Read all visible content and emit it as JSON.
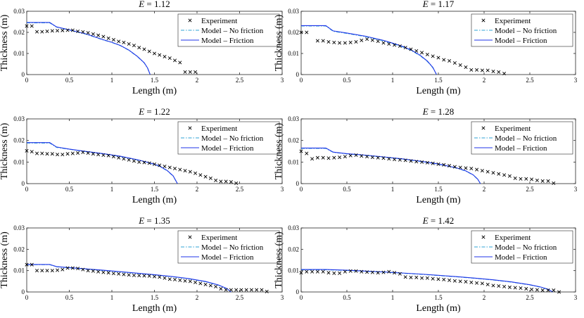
{
  "shared": {
    "xlabel": "Length (m)",
    "ylabel": "Thickness (m)",
    "xlim": [
      0,
      3
    ],
    "ylim": [
      0,
      0.03
    ],
    "xticks": [
      "0",
      "0.5",
      "1",
      "1.5",
      "2",
      "2.5",
      "3"
    ],
    "yticks": [
      "0",
      "0.01",
      "0.02",
      "0.03"
    ],
    "legend": [
      "Experiment",
      "Model – No friction",
      "Model – Friction"
    ],
    "legend_placement": "top-right",
    "grid": false,
    "colors": {
      "experiment": "#000000",
      "no_friction": "#2fa3d6",
      "friction": "#1f35e8"
    }
  },
  "chart_data": [
    {
      "type": "line",
      "title": "E = 1.12",
      "title_var": "E",
      "title_value": "1.12",
      "series": [
        {
          "name": "Experiment",
          "x": [
            0.0,
            0.06,
            0.12,
            0.18,
            0.24,
            0.3,
            0.36,
            0.42,
            0.48,
            0.54,
            0.6,
            0.66,
            0.72,
            0.78,
            0.84,
            0.9,
            0.96,
            1.02,
            1.08,
            1.14,
            1.2,
            1.26,
            1.32,
            1.38,
            1.44,
            1.5,
            1.56,
            1.62,
            1.68,
            1.74,
            1.8,
            1.86,
            1.92,
            1.98
          ],
          "y": [
            0.023,
            0.023,
            0.0203,
            0.0203,
            0.0205,
            0.0207,
            0.0208,
            0.0209,
            0.021,
            0.021,
            0.0205,
            0.0202,
            0.0198,
            0.0192,
            0.0186,
            0.018,
            0.0172,
            0.0165,
            0.0157,
            0.0152,
            0.0145,
            0.0138,
            0.0128,
            0.012,
            0.011,
            0.01,
            0.0093,
            0.0085,
            0.0078,
            0.0067,
            0.0057,
            0.0012,
            0.0012,
            0.0012
          ]
        },
        {
          "name": "Model – No friction",
          "x": [
            0.0,
            0.27,
            0.35,
            0.5,
            0.7,
            0.9,
            1.0,
            1.1,
            1.2,
            1.3,
            1.38,
            1.42,
            1.45
          ],
          "y": [
            0.0245,
            0.0245,
            0.0225,
            0.0211,
            0.0191,
            0.0164,
            0.0152,
            0.0137,
            0.0115,
            0.0085,
            0.0055,
            0.003,
            0.0
          ]
        },
        {
          "name": "Model – Friction",
          "x": [
            0.0,
            0.27,
            0.35,
            0.5,
            0.7,
            0.9,
            1.0,
            1.1,
            1.2,
            1.3,
            1.38,
            1.42,
            1.45
          ],
          "y": [
            0.0247,
            0.0247,
            0.0226,
            0.0212,
            0.0192,
            0.0165,
            0.0153,
            0.0138,
            0.0116,
            0.0086,
            0.0056,
            0.0031,
            0.0
          ]
        }
      ]
    },
    {
      "type": "line",
      "title": "E = 1.17",
      "title_var": "E",
      "title_value": "1.17",
      "series": [
        {
          "name": "Experiment",
          "x": [
            0.0,
            0.06,
            0.18,
            0.24,
            0.3,
            0.36,
            0.42,
            0.48,
            0.54,
            0.6,
            0.66,
            0.72,
            0.78,
            0.84,
            0.9,
            0.96,
            1.02,
            1.08,
            1.14,
            1.2,
            1.26,
            1.32,
            1.38,
            1.44,
            1.5,
            1.56,
            1.62,
            1.68,
            1.74,
            1.8,
            1.86,
            1.92,
            1.98,
            2.04,
            2.1,
            2.16,
            2.22
          ],
          "y": [
            0.02,
            0.02,
            0.016,
            0.016,
            0.0155,
            0.0152,
            0.015,
            0.015,
            0.0152,
            0.0155,
            0.0162,
            0.0168,
            0.0163,
            0.0158,
            0.015,
            0.0145,
            0.014,
            0.0135,
            0.0128,
            0.012,
            0.0112,
            0.0104,
            0.0095,
            0.0087,
            0.008,
            0.007,
            0.0065,
            0.0055,
            0.0045,
            0.0035,
            0.0022,
            0.0022,
            0.002,
            0.002,
            0.0015,
            0.0012,
            0.0005
          ]
        },
        {
          "name": "Model – No friction",
          "x": [
            0.0,
            0.27,
            0.35,
            0.5,
            0.7,
            0.9,
            1.0,
            1.1,
            1.2,
            1.3,
            1.38,
            1.44,
            1.48
          ],
          "y": [
            0.023,
            0.023,
            0.0205,
            0.0195,
            0.018,
            0.016,
            0.0147,
            0.0133,
            0.0115,
            0.009,
            0.0062,
            0.0032,
            0.0
          ]
        },
        {
          "name": "Model – Friction",
          "x": [
            0.0,
            0.27,
            0.35,
            0.5,
            0.7,
            0.9,
            1.0,
            1.1,
            1.2,
            1.3,
            1.38,
            1.44,
            1.48
          ],
          "y": [
            0.0232,
            0.0232,
            0.0207,
            0.0197,
            0.0182,
            0.0162,
            0.0149,
            0.0135,
            0.0117,
            0.0092,
            0.0064,
            0.0034,
            0.0
          ]
        }
      ]
    },
    {
      "type": "line",
      "title": "E = 1.22",
      "title_var": "E",
      "title_value": "1.22",
      "series": [
        {
          "name": "Experiment",
          "x": [
            0.0,
            0.06,
            0.12,
            0.18,
            0.24,
            0.3,
            0.36,
            0.42,
            0.48,
            0.54,
            0.6,
            0.66,
            0.72,
            0.78,
            0.84,
            0.9,
            0.96,
            1.02,
            1.08,
            1.14,
            1.2,
            1.26,
            1.32,
            1.38,
            1.44,
            1.5,
            1.56,
            1.62,
            1.68,
            1.74,
            1.8,
            1.86,
            1.92,
            1.98,
            2.04,
            2.1,
            2.16,
            2.22,
            2.28,
            2.34,
            2.4,
            2.46
          ],
          "y": [
            0.0152,
            0.0148,
            0.014,
            0.014,
            0.0138,
            0.0138,
            0.0135,
            0.0135,
            0.0138,
            0.014,
            0.0142,
            0.0145,
            0.0142,
            0.0138,
            0.0135,
            0.0132,
            0.013,
            0.0125,
            0.012,
            0.0115,
            0.011,
            0.0105,
            0.01,
            0.0098,
            0.0095,
            0.009,
            0.0085,
            0.008,
            0.0075,
            0.007,
            0.0065,
            0.006,
            0.0055,
            0.0048,
            0.004,
            0.0032,
            0.0025,
            0.0015,
            0.001,
            0.001,
            0.0008,
            0.0002
          ]
        },
        {
          "name": "Model – No friction",
          "x": [
            0.0,
            0.27,
            0.35,
            0.5,
            0.7,
            0.9,
            1.1,
            1.3,
            1.45,
            1.55,
            1.65,
            1.72,
            1.77
          ],
          "y": [
            0.0188,
            0.0188,
            0.0168,
            0.0159,
            0.0148,
            0.0138,
            0.0126,
            0.011,
            0.0095,
            0.0082,
            0.006,
            0.0035,
            0.0
          ]
        },
        {
          "name": "Model – Friction",
          "x": [
            0.0,
            0.27,
            0.35,
            0.5,
            0.7,
            0.9,
            1.1,
            1.3,
            1.45,
            1.55,
            1.65,
            1.72,
            1.77
          ],
          "y": [
            0.019,
            0.019,
            0.017,
            0.016,
            0.0149,
            0.0139,
            0.0127,
            0.0111,
            0.0096,
            0.0083,
            0.0061,
            0.0036,
            0.0
          ]
        }
      ]
    },
    {
      "type": "line",
      "title": "E = 1.28",
      "title_var": "E",
      "title_value": "1.28",
      "series": [
        {
          "name": "Experiment",
          "x": [
            0.0,
            0.06,
            0.12,
            0.18,
            0.24,
            0.3,
            0.36,
            0.42,
            0.48,
            0.54,
            0.6,
            0.66,
            0.72,
            0.78,
            0.84,
            0.9,
            0.96,
            1.02,
            1.08,
            1.14,
            1.2,
            1.26,
            1.32,
            1.38,
            1.44,
            1.5,
            1.56,
            1.62,
            1.68,
            1.74,
            1.8,
            1.86,
            1.92,
            1.98,
            2.04,
            2.1,
            2.16,
            2.22,
            2.28,
            2.34,
            2.4,
            2.46,
            2.52,
            2.58,
            2.64,
            2.7,
            2.76
          ],
          "y": [
            0.015,
            0.014,
            0.0115,
            0.012,
            0.012,
            0.0118,
            0.012,
            0.0122,
            0.0125,
            0.013,
            0.0132,
            0.0128,
            0.0125,
            0.0122,
            0.012,
            0.0118,
            0.0115,
            0.0112,
            0.011,
            0.0108,
            0.0105,
            0.0102,
            0.01,
            0.0097,
            0.0094,
            0.009,
            0.0087,
            0.0083,
            0.0078,
            0.0075,
            0.0072,
            0.007,
            0.0065,
            0.006,
            0.0055,
            0.005,
            0.0045,
            0.004,
            0.0035,
            0.0025,
            0.0022,
            0.0022,
            0.002,
            0.0015,
            0.0012,
            0.0012,
            0.0002
          ]
        },
        {
          "name": "Model – No friction",
          "x": [
            0.0,
            0.27,
            0.35,
            0.5,
            0.7,
            0.9,
            1.1,
            1.3,
            1.5,
            1.7,
            1.8,
            1.88,
            1.93,
            1.96
          ],
          "y": [
            0.0163,
            0.0163,
            0.0145,
            0.0138,
            0.0131,
            0.0123,
            0.0114,
            0.0103,
            0.009,
            0.0072,
            0.0058,
            0.004,
            0.002,
            0.0
          ]
        },
        {
          "name": "Model – Friction",
          "x": [
            0.0,
            0.27,
            0.35,
            0.5,
            0.7,
            0.9,
            1.1,
            1.3,
            1.5,
            1.7,
            1.8,
            1.88,
            1.93,
            1.96
          ],
          "y": [
            0.0165,
            0.0165,
            0.0146,
            0.0139,
            0.0132,
            0.0124,
            0.0115,
            0.0104,
            0.0091,
            0.0073,
            0.0059,
            0.0041,
            0.0021,
            0.0
          ]
        }
      ]
    },
    {
      "type": "line",
      "title": "E = 1.35",
      "title_var": "E",
      "title_value": "1.35",
      "series": [
        {
          "name": "Experiment",
          "x": [
            0.0,
            0.06,
            0.12,
            0.18,
            0.24,
            0.3,
            0.36,
            0.42,
            0.48,
            0.54,
            0.6,
            0.66,
            0.72,
            0.78,
            0.84,
            0.9,
            0.96,
            1.02,
            1.08,
            1.14,
            1.2,
            1.26,
            1.32,
            1.38,
            1.44,
            1.5,
            1.56,
            1.62,
            1.68,
            1.74,
            1.8,
            1.86,
            1.92,
            1.98,
            2.04,
            2.1,
            2.16,
            2.22,
            2.28,
            2.34,
            2.4,
            2.46,
            2.52,
            2.58,
            2.64,
            2.7,
            2.76,
            2.82
          ],
          "y": [
            0.0128,
            0.0128,
            0.01,
            0.01,
            0.01,
            0.01,
            0.0102,
            0.0105,
            0.0112,
            0.0112,
            0.011,
            0.0105,
            0.01,
            0.0098,
            0.0095,
            0.0092,
            0.009,
            0.0087,
            0.0085,
            0.0082,
            0.008,
            0.0078,
            0.0077,
            0.0076,
            0.0075,
            0.0072,
            0.007,
            0.0065,
            0.006,
            0.0058,
            0.0055,
            0.0052,
            0.005,
            0.0045,
            0.004,
            0.0035,
            0.003,
            0.0025,
            0.0015,
            0.001,
            0.001,
            0.001,
            0.001,
            0.001,
            0.001,
            0.001,
            0.001,
            0.0002
          ]
        },
        {
          "name": "Model – No friction",
          "x": [
            0.0,
            0.27,
            0.35,
            0.5,
            0.7,
            0.9,
            1.1,
            1.3,
            1.5,
            1.7,
            1.9,
            2.1,
            2.25,
            2.35,
            2.4
          ],
          "y": [
            0.0128,
            0.0128,
            0.0118,
            0.0113,
            0.0107,
            0.0101,
            0.0094,
            0.0087,
            0.008,
            0.0072,
            0.0062,
            0.0048,
            0.0032,
            0.0015,
            0.0
          ]
        },
        {
          "name": "Model – Friction",
          "x": [
            0.0,
            0.27,
            0.35,
            0.5,
            0.7,
            0.9,
            1.1,
            1.3,
            1.5,
            1.7,
            1.9,
            2.1,
            2.25,
            2.35,
            2.4
          ],
          "y": [
            0.0129,
            0.0129,
            0.0119,
            0.0114,
            0.0108,
            0.0102,
            0.0095,
            0.0088,
            0.0081,
            0.0073,
            0.0063,
            0.0049,
            0.0033,
            0.0016,
            0.0
          ]
        }
      ]
    },
    {
      "type": "line",
      "title": "E = 1.42",
      "title_var": "E",
      "title_value": "1.42",
      "series": [
        {
          "name": "Experiment",
          "x": [
            0.0,
            0.06,
            0.12,
            0.18,
            0.24,
            0.3,
            0.36,
            0.42,
            0.48,
            0.54,
            0.6,
            0.66,
            0.72,
            0.78,
            0.84,
            0.9,
            0.96,
            1.02,
            1.08,
            1.14,
            1.2,
            1.26,
            1.32,
            1.38,
            1.44,
            1.5,
            1.56,
            1.62,
            1.68,
            1.74,
            1.8,
            1.86,
            1.92,
            1.98,
            2.04,
            2.1,
            2.16,
            2.22,
            2.28,
            2.34,
            2.4,
            2.46,
            2.52,
            2.58,
            2.64,
            2.7,
            2.76,
            2.82
          ],
          "y": [
            0.009,
            0.0095,
            0.0095,
            0.0095,
            0.0095,
            0.009,
            0.0088,
            0.0088,
            0.0095,
            0.0098,
            0.0098,
            0.0095,
            0.0093,
            0.0092,
            0.009,
            0.0092,
            0.0095,
            0.009,
            0.0085,
            0.007,
            0.0068,
            0.0068,
            0.0065,
            0.0065,
            0.0062,
            0.006,
            0.0058,
            0.0055,
            0.0052,
            0.005,
            0.0048,
            0.0045,
            0.0042,
            0.004,
            0.0035,
            0.003,
            0.0028,
            0.0025,
            0.0022,
            0.002,
            0.0018,
            0.0015,
            0.0012,
            0.001,
            0.0008,
            0.0008,
            0.0008,
            0.0
          ]
        },
        {
          "name": "Model – No friction",
          "x": [
            0.0,
            0.27,
            0.5,
            0.7,
            0.9,
            1.1,
            1.3,
            1.5,
            1.7,
            1.9,
            2.1,
            2.3,
            2.5,
            2.62,
            2.7,
            2.75
          ],
          "y": [
            0.0104,
            0.0104,
            0.0101,
            0.0097,
            0.0093,
            0.0088,
            0.0083,
            0.0077,
            0.0071,
            0.0064,
            0.0056,
            0.0046,
            0.0033,
            0.0022,
            0.0012,
            0.0
          ]
        },
        {
          "name": "Model – Friction",
          "x": [
            0.0,
            0.27,
            0.5,
            0.7,
            0.9,
            1.1,
            1.3,
            1.5,
            1.7,
            1.9,
            2.1,
            2.3,
            2.5,
            2.62,
            2.7,
            2.75
          ],
          "y": [
            0.0105,
            0.0105,
            0.0102,
            0.0098,
            0.0094,
            0.0089,
            0.0084,
            0.0078,
            0.0072,
            0.0065,
            0.0057,
            0.0047,
            0.0034,
            0.0023,
            0.0013,
            0.0
          ]
        }
      ]
    }
  ]
}
